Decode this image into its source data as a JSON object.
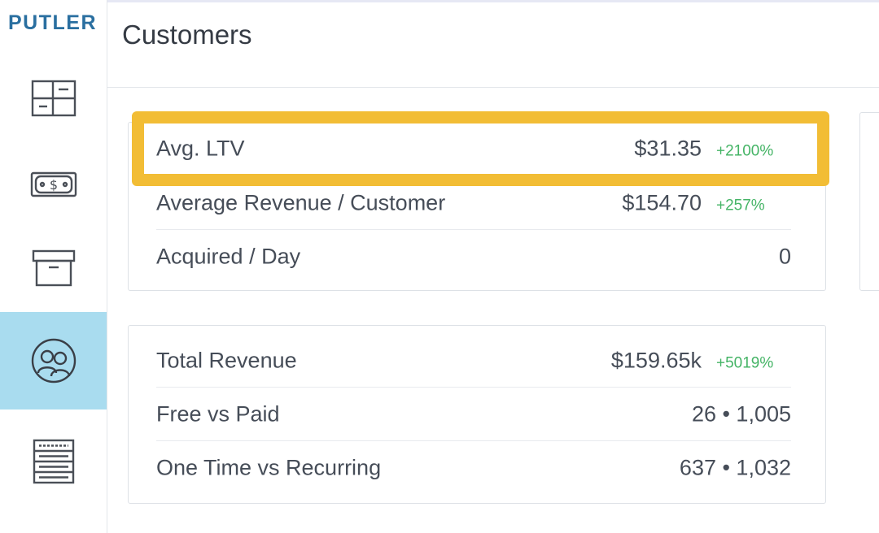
{
  "app": {
    "logo": "PUTLER"
  },
  "sidebar": {
    "items": [
      {
        "icon": "dashboard-icon",
        "active": false
      },
      {
        "icon": "money-icon",
        "active": false
      },
      {
        "icon": "box-icon",
        "active": false
      },
      {
        "icon": "customers-icon",
        "active": true
      },
      {
        "icon": "list-icon",
        "active": false
      }
    ]
  },
  "header": {
    "title": "Customers"
  },
  "card_a": {
    "rows": [
      {
        "label": "Avg. LTV",
        "value": "$31.35",
        "change": "+2100%"
      },
      {
        "label": "Average Revenue / Customer",
        "value": "$154.70",
        "change": "+257%"
      },
      {
        "label": "Acquired / Day",
        "value": "0",
        "change": ""
      }
    ]
  },
  "card_b": {
    "rows": [
      {
        "label": "Total Revenue",
        "value": "$159.65k",
        "change": "+5019%"
      },
      {
        "label": "Free vs Paid",
        "value": "26 • 1,005",
        "change": ""
      },
      {
        "label": "One Time vs Recurring",
        "value": "637 • 1,032",
        "change": ""
      }
    ]
  },
  "colors": {
    "highlight": "#f2bd35",
    "active_nav": "#a9dcef",
    "positive": "#45b466",
    "logo": "#2a6fa0"
  }
}
